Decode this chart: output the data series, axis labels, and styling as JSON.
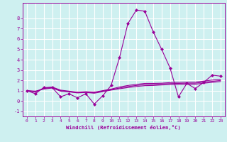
{
  "title": "",
  "xlabel": "Windchill (Refroidissement éolien,°C)",
  "ylabel": "",
  "background_color": "#cef0f0",
  "grid_color": "#ffffff",
  "line_color": "#990099",
  "xlim": [
    -0.5,
    23.5
  ],
  "ylim": [
    -1.5,
    9.5
  ],
  "xticks": [
    0,
    1,
    2,
    3,
    4,
    5,
    6,
    7,
    8,
    9,
    10,
    11,
    12,
    13,
    14,
    15,
    16,
    17,
    18,
    19,
    20,
    21,
    22,
    23
  ],
  "yticks": [
    -1,
    0,
    1,
    2,
    3,
    4,
    5,
    6,
    7,
    8
  ],
  "series": [
    [
      1.0,
      0.7,
      1.3,
      1.3,
      0.4,
      0.7,
      0.3,
      0.7,
      -0.3,
      0.5,
      1.5,
      4.2,
      7.5,
      8.8,
      8.7,
      6.7,
      5.0,
      3.2,
      0.4,
      1.7,
      1.2,
      1.8,
      2.5,
      2.4
    ],
    [
      1.0,
      0.85,
      1.25,
      1.35,
      1.05,
      0.95,
      0.85,
      0.9,
      0.85,
      1.0,
      1.15,
      1.35,
      1.5,
      1.6,
      1.7,
      1.7,
      1.72,
      1.78,
      1.8,
      1.82,
      1.82,
      1.92,
      2.02,
      2.1
    ],
    [
      1.0,
      0.9,
      1.2,
      1.3,
      1.0,
      0.9,
      0.8,
      0.85,
      0.8,
      0.95,
      1.1,
      1.25,
      1.4,
      1.5,
      1.58,
      1.6,
      1.65,
      1.68,
      1.7,
      1.72,
      1.72,
      1.82,
      1.9,
      1.98
    ],
    [
      1.0,
      0.95,
      1.15,
      1.25,
      0.95,
      0.88,
      0.78,
      0.82,
      0.75,
      0.9,
      1.05,
      1.18,
      1.3,
      1.4,
      1.48,
      1.5,
      1.55,
      1.58,
      1.6,
      1.62,
      1.62,
      1.72,
      1.8,
      1.88
    ]
  ]
}
